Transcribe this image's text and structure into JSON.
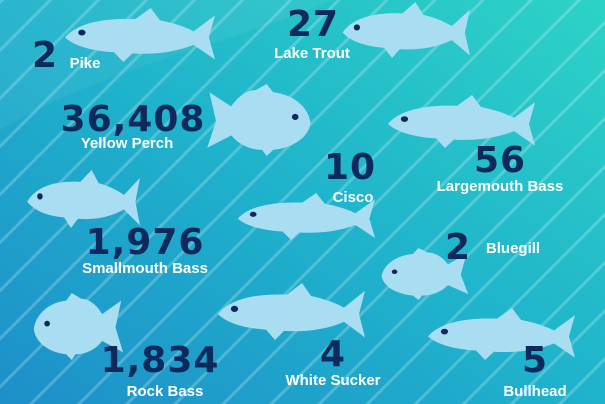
{
  "items": [
    {
      "count": "2",
      "label": "Pike"
    },
    {
      "count": "27",
      "label": "Lake Trout"
    },
    {
      "count": "36,408",
      "label": "Yellow Perch"
    },
    {
      "count": "10",
      "label": "Cisco"
    },
    {
      "count": "56",
      "label": "Largemouth Bass"
    },
    {
      "count": "1,976",
      "label": "Smallmouth Bass"
    },
    {
      "count": "2",
      "label": "Bluegill"
    },
    {
      "count": "1,834",
      "label": "Rock Bass"
    },
    {
      "count": "4",
      "label": "White Sucker"
    },
    {
      "count": "5",
      "label": "Bullhead"
    }
  ]
}
